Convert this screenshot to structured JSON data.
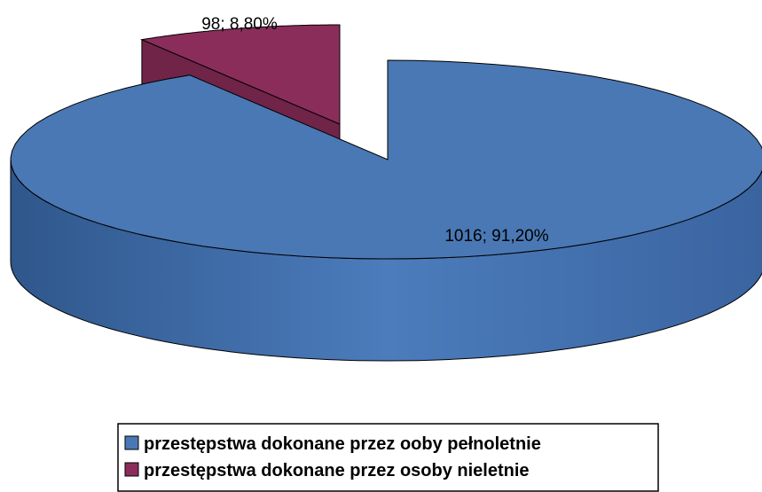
{
  "chart_data": {
    "type": "pie3d",
    "categories": [
      "przestępstwa dokonane przez ooby pełnoletnie",
      "przestępstwa dokonane przez osoby nieletnie"
    ],
    "values": [
      1016,
      98
    ],
    "value_labels": [
      "1016; 91,20%",
      "98; 8,80%"
    ],
    "colors": [
      "#4a78b4",
      "#8b2d5a"
    ],
    "legend": "bottom"
  }
}
